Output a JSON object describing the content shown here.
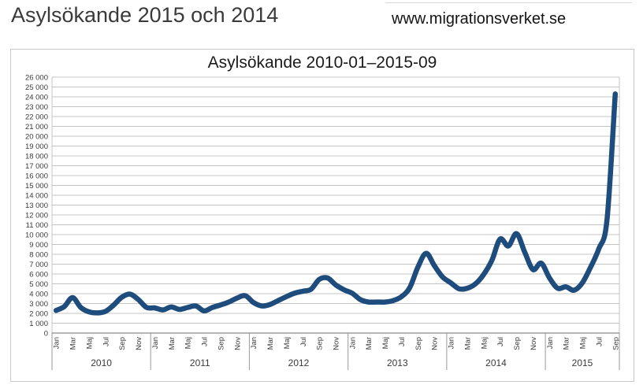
{
  "page": {
    "title": "Asylsökande 2015 och 2014",
    "website_url": "www.migrationsverket.se"
  },
  "chart_data": {
    "type": "line",
    "title": "Asylsökande 2010-01–2015-09",
    "xlabel": "",
    "ylabel": "",
    "ylim": [
      0,
      26000
    ],
    "y_tick_step": 1000,
    "grid": true,
    "legend": "none",
    "line_color": "#1e4c7c",
    "month_tick_labels": [
      "Jan",
      "Mar",
      "Maj",
      "Jul",
      "Sep",
      "Nov"
    ],
    "data": [
      {
        "year": "2010",
        "values": [
          2300,
          2700,
          3600,
          2600,
          2150,
          2050,
          2200,
          2850,
          3650,
          3950,
          3400,
          2600
        ]
      },
      {
        "year": "2011",
        "values": [
          2550,
          2350,
          2650,
          2400,
          2600,
          2750,
          2250,
          2600,
          2850,
          3150,
          3550,
          3800
        ]
      },
      {
        "year": "2012",
        "values": [
          3100,
          2750,
          2900,
          3300,
          3700,
          4050,
          4250,
          4450,
          5450,
          5600,
          4900,
          4400
        ]
      },
      {
        "year": "2013",
        "values": [
          4050,
          3400,
          3150,
          3150,
          3150,
          3300,
          3700,
          4600,
          6700,
          8100,
          6850,
          5700
        ]
      },
      {
        "year": "2014",
        "values": [
          5100,
          4500,
          4550,
          5000,
          5950,
          7400,
          9550,
          8850,
          10100,
          8200,
          6450,
          7100
        ]
      },
      {
        "year": "2015",
        "values": [
          5600,
          4550,
          4700,
          4350,
          5100,
          6700,
          8550,
          11500,
          24300
        ]
      }
    ]
  }
}
